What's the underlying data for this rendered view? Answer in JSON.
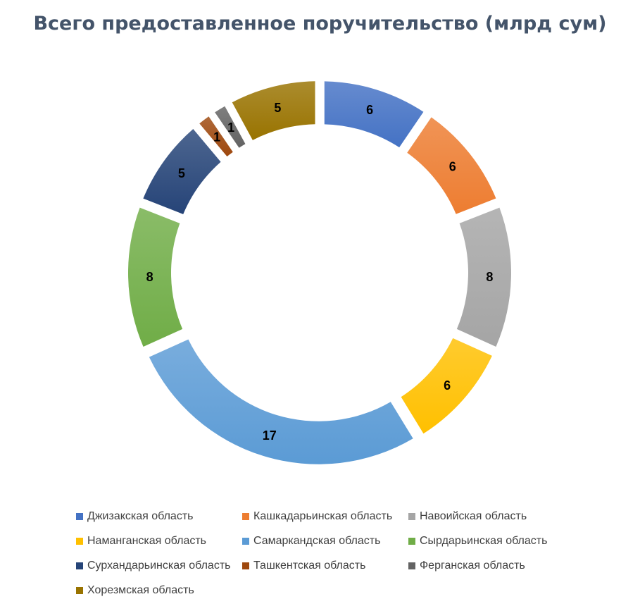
{
  "chart_data": {
    "type": "pie",
    "title": "Всего предоставленное поручительство (млрд сум)",
    "categories": [
      "Джизакская область",
      "Кашкадарьинская область",
      "Навоийская область",
      "Наманганская область",
      "Самаркандская область",
      "Сырдарьинская область",
      "Сурхандарьинская область",
      "Ташкентская область",
      "Ферганская область",
      "Хорезмская область"
    ],
    "values": [
      6,
      6,
      8,
      6,
      17,
      8,
      5,
      1,
      1,
      5
    ],
    "colors": [
      "#4472c4",
      "#ed7d31",
      "#a5a5a5",
      "#ffc000",
      "#5b9bd5",
      "#70ad47",
      "#264478",
      "#9e480e",
      "#636363",
      "#997300"
    ],
    "legend_position": "bottom",
    "style": "doughnut"
  }
}
